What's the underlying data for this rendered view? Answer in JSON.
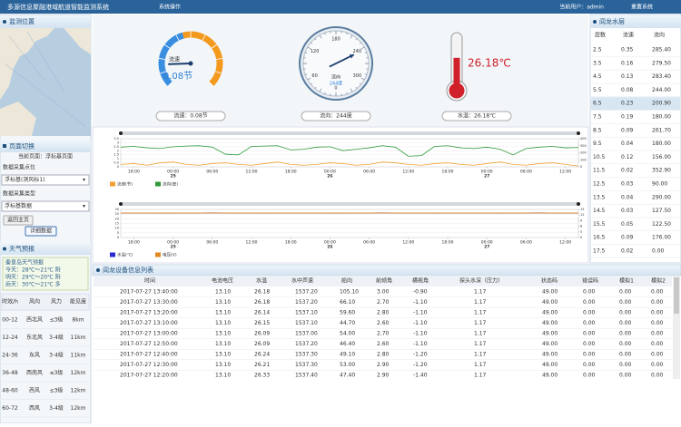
{
  "header": {
    "title": "多源信息聚融港域航道智能监测系统",
    "menu": "系统操作",
    "user": "当前用户：admin",
    "reset": "重置系统"
  },
  "left": {
    "location_title": "监测位置",
    "switch_title": "页面切换",
    "current_page": "当前页面：浮标基页面",
    "point_label": "数据采集点位",
    "point_value": "浮标基(测风标1)",
    "type_label": "数据采集类型",
    "type_value": "浮标基数据",
    "back_button": "返回主页",
    "detail_button": "详细数据"
  },
  "weather": {
    "title": "天气预报",
    "city": "秦皇岛天气预报",
    "days": [
      "今天：28℃～21℃ 阴",
      "明天：29℃～20℃ 阴",
      "后天：30℃～21℃ 多"
    ],
    "columns": [
      "时效/h",
      "风向",
      "风力",
      "能见度"
    ],
    "rows": [
      [
        "00-12",
        "西北风",
        "≤3级",
        "8km"
      ],
      [
        "12-24",
        "东北风",
        "3-4级",
        "11km"
      ],
      [
        "24-36",
        "东风",
        "3-4级",
        "11km"
      ],
      [
        "36-48",
        "西南风",
        "≤3级",
        "12km"
      ],
      [
        "48-60",
        "西风",
        "≤3级",
        "12km"
      ],
      [
        "60-72",
        "西风",
        "3-4级",
        "12km"
      ]
    ]
  },
  "chart_data": [
    {
      "type": "gauge",
      "label": "流速",
      "value": 0.08,
      "value_label": "0.08节",
      "caption": "流速：0.08节",
      "lim": [
        0,
        0.5
      ]
    },
    {
      "type": "compass",
      "label": "流向",
      "value": 244,
      "value_label": "244度",
      "caption": "流向：244度",
      "lim": [
        0,
        360
      ],
      "ticks": [
        0,
        60,
        120,
        180,
        240,
        300
      ]
    },
    {
      "type": "thermometer",
      "value": 26.18,
      "value_label": "26.18℃",
      "caption": "水温：26.18℃",
      "lim": [
        0,
        50
      ]
    },
    {
      "type": "line",
      "categories": [
        null,
        "18:00",
        null,
        null,
        "00:00",
        null,
        null,
        "06:00",
        null,
        null,
        "12:00",
        null,
        null,
        "18:00",
        null,
        null,
        "00:00",
        null,
        null,
        "06:00",
        null,
        null,
        "12:00",
        null,
        null,
        "18:00",
        null,
        null,
        "00:00",
        null,
        null,
        "06:00",
        null,
        null,
        "12:00",
        null
      ],
      "day_labels": [
        null,
        null,
        null,
        null,
        "25",
        null,
        null,
        null,
        null,
        null,
        null,
        null,
        null,
        null,
        null,
        null,
        "26",
        null,
        null,
        null,
        null,
        null,
        null,
        null,
        null,
        null,
        null,
        null,
        "27",
        null,
        null,
        null,
        null,
        null,
        null,
        null
      ],
      "series": [
        {
          "name": "流速(节)",
          "color": "#f0a030",
          "values": [
            0.3,
            0.4,
            0.2,
            0.5,
            0.6,
            0.3,
            0.2,
            0.4,
            0.5,
            0.3,
            0.2,
            0.4,
            0.6,
            0.3,
            0.2,
            0.3,
            0.5,
            0.4,
            0.2,
            0.3,
            0.6,
            0.5,
            0.3,
            0.2,
            0.4,
            0.5,
            0.3,
            0.2,
            0.4,
            0.6,
            0.3,
            0.2,
            0.4,
            0.5,
            0.3,
            0.1
          ]
        },
        {
          "name": "流向(度)",
          "color": "#2e9a3a",
          "axis": "y2",
          "values": [
            280,
            290,
            270,
            260,
            285,
            295,
            300,
            280,
            180,
            170,
            290,
            295,
            300,
            240,
            250,
            280,
            285,
            230,
            250,
            270,
            300,
            280,
            150,
            160,
            290,
            300,
            270,
            260,
            280,
            250,
            170,
            260,
            280,
            290,
            270,
            275
          ]
        }
      ],
      "ylim": [
        0,
        3.5
      ],
      "yticks": [
        0,
        0.5,
        1,
        1.5,
        2,
        2.5,
        3,
        3.5
      ],
      "y2lim": [
        0,
        400
      ],
      "y2ticks": [
        0,
        100,
        200,
        300,
        400
      ],
      "grid": true
    },
    {
      "type": "line",
      "categories": [
        null,
        "18:00",
        null,
        null,
        "00:00",
        null,
        null,
        "06:00",
        null,
        null,
        "12:00",
        null,
        null,
        "18:00",
        null,
        null,
        "00:00",
        null,
        null,
        "06:00",
        null,
        null,
        "12:00",
        null,
        null,
        "18:00",
        null,
        null,
        "00:00",
        null,
        null,
        "06:00",
        null,
        null,
        "12:00",
        null
      ],
      "day_labels": [
        null,
        null,
        null,
        null,
        "25",
        null,
        null,
        null,
        null,
        null,
        null,
        null,
        null,
        null,
        null,
        null,
        "26",
        null,
        null,
        null,
        null,
        null,
        null,
        null,
        null,
        null,
        null,
        null,
        "27",
        null,
        null,
        null,
        null,
        null,
        null,
        null
      ],
      "series": [
        {
          "name": "水温(℃)",
          "color": "#2a2ad0",
          "values": [
            26.2,
            26.1,
            26.1,
            26.0,
            26.0,
            26.1,
            26.2,
            26.3,
            26.2,
            26.1,
            26.1,
            26.0,
            26.1,
            26.2,
            26.2,
            26.1,
            26.0,
            26.0,
            26.1,
            26.2,
            26.3,
            26.2,
            26.1,
            26.1,
            26.0,
            26.1,
            26.2,
            26.2,
            26.1,
            26.0,
            26.1,
            26.2,
            26.3,
            26.2,
            26.2,
            26.18
          ]
        },
        {
          "name": "电压(V)",
          "color": "#e08a20",
          "axis": "y2",
          "values": [
            13.1,
            13.1,
            13.1,
            13.1,
            13.1,
            13.1,
            13.1,
            13.1,
            13.1,
            13.1,
            13.1,
            13.1,
            13.1,
            13.1,
            13.1,
            13.1,
            13.1,
            13.1,
            13.1,
            13.1,
            13.1,
            13.1,
            13.1,
            13.1,
            13.1,
            13.1,
            13.1,
            13.1,
            13.1,
            13.1,
            13.1,
            13.1,
            13.1,
            13.1,
            13.1,
            13.1
          ]
        }
      ],
      "ylim": [
        0,
        30
      ],
      "yticks": [
        0,
        5,
        10,
        15,
        20,
        25,
        30
      ],
      "y2lim": [
        0,
        15
      ],
      "y2ticks": [
        0,
        3,
        6,
        9,
        12,
        15
      ],
      "grid": true
    }
  ],
  "layers": {
    "title": "闾龙水层",
    "columns": [
      "层数",
      "流速",
      "流向"
    ],
    "rows": [
      [
        "2.5",
        "0.35",
        "285.40"
      ],
      [
        "3.5",
        "0.16",
        "279.50"
      ],
      [
        "4.5",
        "0.13",
        "283.40"
      ],
      [
        "5.5",
        "0.08",
        "244.00"
      ],
      [
        "6.5",
        "0.23",
        "200.90"
      ],
      [
        "7.5",
        "0.19",
        "180.00"
      ],
      [
        "8.5",
        "0.09",
        "261.70"
      ],
      [
        "9.5",
        "0.04",
        "180.00"
      ],
      [
        "10.5",
        "0.12",
        "156.00"
      ],
      [
        "11.5",
        "0.02",
        "352.90"
      ],
      [
        "12.5",
        "0.03",
        "90.00"
      ],
      [
        "13.5",
        "0.04",
        "290.00"
      ],
      [
        "14.5",
        "0.03",
        "127.50"
      ],
      [
        "15.5",
        "0.05",
        "122.50"
      ],
      [
        "16.5",
        "0.09",
        "176.00"
      ],
      [
        "17.5",
        "0.02",
        "0.00"
      ]
    ]
  },
  "device_table": {
    "title": "闾龙设备信息列表",
    "columns": [
      "时间",
      "电池电压",
      "水温",
      "水中声速",
      "船向",
      "前倾角",
      "横摇角",
      "探头水深（压力）",
      "状态码",
      "错误码",
      "模拟1",
      "模拟2"
    ],
    "rows": [
      [
        "2017-07-27 13:40:00",
        "13.10",
        "26.18",
        "1537.20",
        "105.10",
        "3.00",
        "-0.90",
        "1.17",
        "49.00",
        "0.00",
        "0.00",
        "0.00"
      ],
      [
        "2017-07-27 13:30:00",
        "13.10",
        "26.18",
        "1537.20",
        "66.10",
        "2.70",
        "-1.10",
        "1.17",
        "49.00",
        "0.00",
        "0.00",
        "0.00"
      ],
      [
        "2017-07-27 13:20:00",
        "13.10",
        "26.14",
        "1537.10",
        "59.60",
        "2.80",
        "-1.10",
        "1.17",
        "49.00",
        "0.00",
        "0.00",
        "0.00"
      ],
      [
        "2017-07-27 13:10:00",
        "13.10",
        "26.15",
        "1537.10",
        "44.70",
        "2.60",
        "-1.10",
        "1.17",
        "49.00",
        "0.00",
        "0.00",
        "0.00"
      ],
      [
        "2017-07-27 13:00:00",
        "13.10",
        "26.09",
        "1537.00",
        "54.00",
        "2.70",
        "-1.10",
        "1.17",
        "49.00",
        "0.00",
        "0.00",
        "0.00"
      ],
      [
        "2017-07-27 12:50:00",
        "13.10",
        "26.09",
        "1537.20",
        "46.40",
        "2.60",
        "-1.10",
        "1.17",
        "49.00",
        "0.00",
        "0.00",
        "0.00"
      ],
      [
        "2017-07-27 12:40:00",
        "13.10",
        "26.24",
        "1537.30",
        "49.10",
        "2.80",
        "-1.20",
        "1.17",
        "49.00",
        "0.00",
        "0.00",
        "0.00"
      ],
      [
        "2017-07-27 12:30:00",
        "13.10",
        "26.21",
        "1537.30",
        "53.00",
        "2.90",
        "-1.20",
        "1.17",
        "49.00",
        "0.00",
        "0.00",
        "0.00"
      ],
      [
        "2017-07-27 12:20:00",
        "13.10",
        "26.33",
        "1537.40",
        "47.40",
        "2.90",
        "-1.40",
        "1.17",
        "49.00",
        "0.00",
        "0.00",
        "0.00"
      ]
    ]
  }
}
